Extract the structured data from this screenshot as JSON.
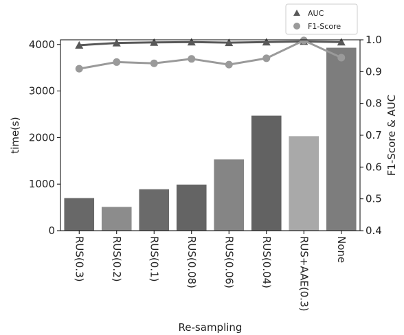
{
  "chart_data": {
    "type": "bar",
    "categories": [
      "RUS(0.3)",
      "RUS(0.2)",
      "RUS(0.1)",
      "RUS(0.08)",
      "RUS(0.06)",
      "RUS(0.04)",
      "RUS+AAE(0.3)",
      "None"
    ],
    "bars": {
      "values": [
        700,
        510,
        890,
        990,
        1530,
        2470,
        2030,
        3930
      ],
      "colors": [
        "#686868",
        "#8c8c8c",
        "#6a6a6a",
        "#646464",
        "#858585",
        "#626262",
        "#a9a9a9",
        "#7d7d7d"
      ]
    },
    "lines": [
      {
        "name": "AUC",
        "values": [
          0.983,
          0.99,
          0.992,
          0.993,
          0.991,
          0.993,
          0.995,
          0.993
        ],
        "color": "#585858",
        "marker": "triangle"
      },
      {
        "name": "F1-Score",
        "values": [
          0.909,
          0.93,
          0.926,
          0.94,
          0.922,
          0.942,
          0.998,
          0.944
        ],
        "color": "#9a9a9a",
        "marker": "circle"
      }
    ],
    "xlabel": "Re-sampling",
    "ylabel_left": "time(s)",
    "ylabel_right": "F1-Score & AUC",
    "ylim_left": [
      0,
      4100
    ],
    "ylim_right": [
      0.4,
      1.0
    ],
    "yticks_left": [
      0,
      1000,
      2000,
      3000,
      4000
    ],
    "yticks_right": [
      0.4,
      0.5,
      0.6,
      0.7,
      0.8,
      0.9,
      1.0
    ],
    "legend_placement": "top-right, above plot",
    "grid": false
  }
}
